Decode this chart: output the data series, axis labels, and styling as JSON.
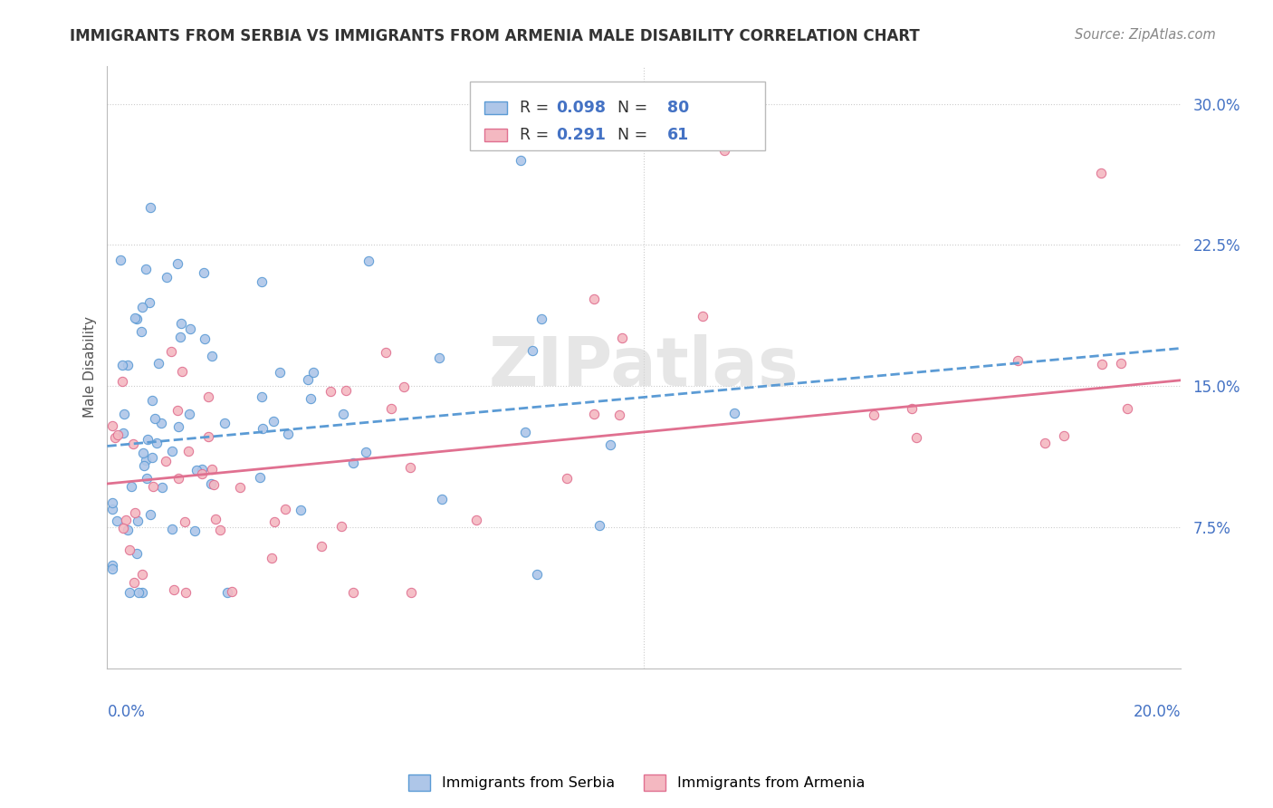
{
  "title": "IMMIGRANTS FROM SERBIA VS IMMIGRANTS FROM ARMENIA MALE DISABILITY CORRELATION CHART",
  "source": "Source: ZipAtlas.com",
  "ylabel": "Male Disability",
  "ytick_values": [
    0.075,
    0.15,
    0.225,
    0.3
  ],
  "xlim": [
    0.0,
    0.2
  ],
  "ylim": [
    0.0,
    0.32
  ],
  "serbia_color": "#aec6e8",
  "armenia_color": "#f4b8c1",
  "serbia_edge_color": "#5b9bd5",
  "armenia_edge_color": "#e07090",
  "trendline_serbia_color": "#5b9bd5",
  "trendline_armenia_color": "#e07090",
  "serbia_R": 0.098,
  "serbia_N": 80,
  "armenia_R": 0.291,
  "armenia_N": 61,
  "legend_R_color": "#4472c4",
  "legend_N_color": "#4472c4",
  "watermark": "ZIPatlas",
  "serbia_trendline_start_y": 0.118,
  "serbia_trendline_end_y": 0.17,
  "armenia_trendline_start_y": 0.098,
  "armenia_trendline_end_y": 0.153
}
